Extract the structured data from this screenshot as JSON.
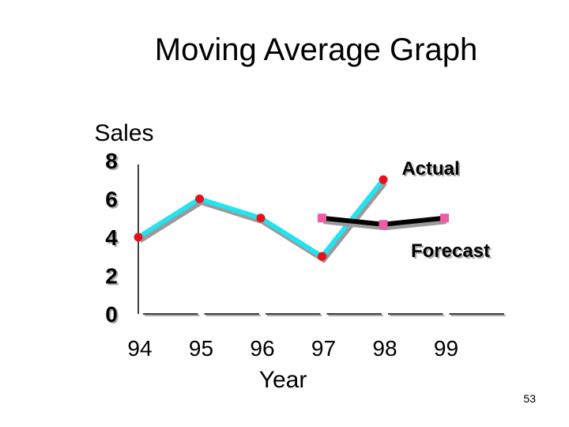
{
  "chart_data": {
    "type": "line",
    "title": "Moving Average Graph",
    "ylabel": "Sales",
    "xlabel": "Year",
    "categories": [
      "94",
      "95",
      "96",
      "97",
      "98",
      "99"
    ],
    "yticks": [
      "8",
      "6",
      "4",
      "2",
      "0"
    ],
    "ylim": [
      0,
      8
    ],
    "grid": false,
    "series": [
      {
        "name": "Actual",
        "x": [
          "94",
          "95",
          "96",
          "97",
          "98"
        ],
        "values": [
          4,
          6,
          5,
          3,
          7
        ],
        "color": "#22e3f0",
        "marker_color": "#e8101a"
      },
      {
        "name": "Forecast",
        "x": [
          "97",
          "98",
          "99"
        ],
        "values": [
          5,
          4.67,
          5
        ],
        "color": "#000000",
        "marker_color": "#f05aa8"
      }
    ]
  },
  "page_number": "53"
}
